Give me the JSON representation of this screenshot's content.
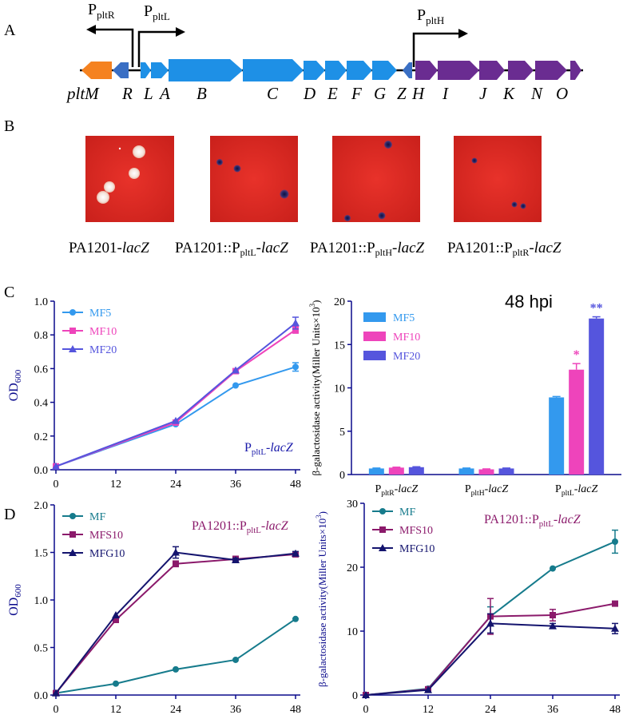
{
  "panel_labels": {
    "a": "A",
    "b": "B",
    "c": "C",
    "d": "D"
  },
  "panel_a": {
    "promoters": {
      "pltR": "pltR",
      "pltL": "pltL",
      "pltH": "pltH",
      "P": "P"
    },
    "genes": [
      "pltM",
      "R",
      "L",
      "A",
      "B",
      "C",
      "D",
      "E",
      "F",
      "G",
      "Z",
      "H",
      "I",
      "J",
      "K",
      "N",
      "O"
    ]
  },
  "panel_b": {
    "plates": [
      {
        "name": "PA1201-",
        "sub": "",
        "suffix": "lacZ"
      },
      {
        "name": "PA1201::P",
        "sub": "pltL",
        "suffix": "-lacZ"
      },
      {
        "name": "PA1201::P",
        "sub": "pltH",
        "suffix": "-lacZ"
      },
      {
        "name": "PA1201::P",
        "sub": "pltR",
        "suffix": "-lacZ"
      }
    ]
  },
  "colors": {
    "orange": "#f58220",
    "lightblue": "#1e90e6",
    "darkblue": "#3a6fc4",
    "purple": "#6a2c91",
    "mf5": "#3399ee",
    "mf10": "#ee44bb",
    "mf20": "#5555dd",
    "mf": "#167b8c",
    "mfs10": "#8b1a6b",
    "mfg10": "#14146e",
    "axis": "#0a0a8c"
  },
  "chart_data": [
    {
      "type": "line",
      "panel": "C-left",
      "xlabel": "",
      "ylabel": "OD600",
      "ylabel_main": "OD",
      "ylabel_sub": "600",
      "annotation": {
        "main": "P",
        "sub": "pltL",
        "suffix": "-lacZ"
      },
      "x": [
        0,
        12,
        24,
        36,
        48
      ],
      "xticks": [
        "0",
        "12",
        "24",
        "36",
        "48"
      ],
      "ylim": [
        0,
        1.0
      ],
      "yticks": [
        "0.0",
        "0.2",
        "0.4",
        "0.6",
        "0.8",
        "1.0"
      ],
      "series": [
        {
          "name": "MF5",
          "x": [
            0,
            24,
            36,
            48
          ],
          "values": [
            0.02,
            0.27,
            0.5,
            0.61
          ],
          "err": [
            0,
            0,
            0,
            0.025
          ],
          "marker": "circle",
          "color": "#3399ee"
        },
        {
          "name": "MF10",
          "x": [
            0,
            24,
            36,
            48
          ],
          "values": [
            0.02,
            0.28,
            0.585,
            0.83
          ],
          "err": [
            0,
            0,
            0,
            0.02
          ],
          "marker": "square",
          "color": "#ee44bb"
        },
        {
          "name": "MF20",
          "x": [
            0,
            24,
            36,
            48
          ],
          "values": [
            0.02,
            0.29,
            0.59,
            0.87
          ],
          "err": [
            0,
            0,
            0,
            0.035
          ],
          "marker": "triangle",
          "color": "#5555dd"
        }
      ]
    },
    {
      "type": "bar",
      "panel": "C-right",
      "title": "48 hpi",
      "ylabel": "β-galactosidase activity(Miller Units×10³)",
      "ylabel_main": "β-galactosidase activity(Miller Units×10",
      "ylabel_sup": "3",
      "ylabel_close": ")",
      "ylim": [
        0,
        20
      ],
      "yticks": [
        "0",
        "5",
        "10",
        "15",
        "20"
      ],
      "categories": [
        {
          "main": "P",
          "sub": "pltR",
          "suffix": "-lacZ"
        },
        {
          "main": "P",
          "sub": "pltH",
          "suffix": "-lacZ"
        },
        {
          "main": "P",
          "sub": "pltL",
          "suffix": "-lacZ"
        }
      ],
      "series": [
        {
          "name": "MF5",
          "values": [
            0.7,
            0.7,
            8.9
          ],
          "err": [
            0.05,
            0.05,
            0.1
          ],
          "color": "#3399ee",
          "sig": [
            "",
            "",
            ""
          ]
        },
        {
          "name": "MF10",
          "values": [
            0.8,
            0.6,
            12.1
          ],
          "err": [
            0.05,
            0.05,
            0.7
          ],
          "color": "#ee44bb",
          "sig": [
            "",
            "",
            "*"
          ]
        },
        {
          "name": "MF20",
          "values": [
            0.85,
            0.7,
            18.0
          ],
          "err": [
            0.05,
            0.05,
            0.2
          ],
          "color": "#5555dd",
          "sig": [
            "",
            "",
            "**"
          ]
        }
      ]
    },
    {
      "type": "line",
      "panel": "D-left",
      "ylabel_main": "OD",
      "ylabel_sub": "600",
      "annotation": {
        "main": "PA1201::P",
        "sub": "pltL",
        "suffix": "-lacZ"
      },
      "x": [
        0,
        12,
        24,
        36,
        48
      ],
      "xticks": [
        "0",
        "12",
        "24",
        "36",
        "48"
      ],
      "ylim": [
        0,
        2.0
      ],
      "yticks": [
        "0.0",
        "0.5",
        "1.0",
        "1.5",
        "2.0"
      ],
      "series": [
        {
          "name": "MF",
          "x": [
            0,
            12,
            24,
            36,
            48
          ],
          "values": [
            0.02,
            0.12,
            0.27,
            0.37,
            0.8
          ],
          "err": [
            0,
            0,
            0,
            0,
            0
          ],
          "marker": "circle",
          "color": "#167b8c"
        },
        {
          "name": "MFS10",
          "x": [
            0,
            12,
            24,
            36,
            48
          ],
          "values": [
            0.02,
            0.79,
            1.38,
            1.43,
            1.48
          ],
          "err": [
            0,
            0,
            0.03,
            0.03,
            0.02
          ],
          "marker": "square",
          "color": "#8b1a6b"
        },
        {
          "name": "MFG10",
          "x": [
            0,
            12,
            24,
            36,
            48
          ],
          "values": [
            0.02,
            0.84,
            1.5,
            1.42,
            1.49
          ],
          "err": [
            0,
            0,
            0.06,
            0.02,
            0.02
          ],
          "marker": "triangle",
          "color": "#14146e"
        }
      ]
    },
    {
      "type": "line",
      "panel": "D-right",
      "ylabel_main": "β-galactosidase activity(Miller Units×10",
      "ylabel_sup": "3",
      "ylabel_close": ")",
      "annotation": {
        "main": "PA1201::P",
        "sub": "pltL",
        "suffix": "-lacZ"
      },
      "x": [
        0,
        12,
        24,
        36,
        48
      ],
      "xticks": [
        "0",
        "12",
        "24",
        "36",
        "48"
      ],
      "ylim": [
        0,
        30
      ],
      "yticks": [
        "0",
        "10",
        "20",
        "30"
      ],
      "series": [
        {
          "name": "MF",
          "x": [
            0,
            12,
            24,
            36,
            48
          ],
          "values": [
            0,
            1.0,
            12.3,
            19.8,
            24.0
          ],
          "err": [
            0,
            0,
            1.5,
            0,
            1.8
          ],
          "marker": "circle",
          "color": "#167b8c"
        },
        {
          "name": "MFS10",
          "x": [
            0,
            12,
            24,
            36,
            48
          ],
          "values": [
            0,
            0.9,
            12.3,
            12.5,
            14.3
          ],
          "err": [
            0,
            0,
            2.8,
            0.9,
            0.3
          ],
          "marker": "square",
          "color": "#8b1a6b"
        },
        {
          "name": "MFG10",
          "x": [
            0,
            12,
            24,
            36,
            48
          ],
          "values": [
            0,
            0.8,
            11.2,
            10.8,
            10.4
          ],
          "err": [
            0,
            0,
            1.5,
            0.4,
            0.8
          ],
          "marker": "triangle",
          "color": "#14146e"
        }
      ]
    }
  ]
}
